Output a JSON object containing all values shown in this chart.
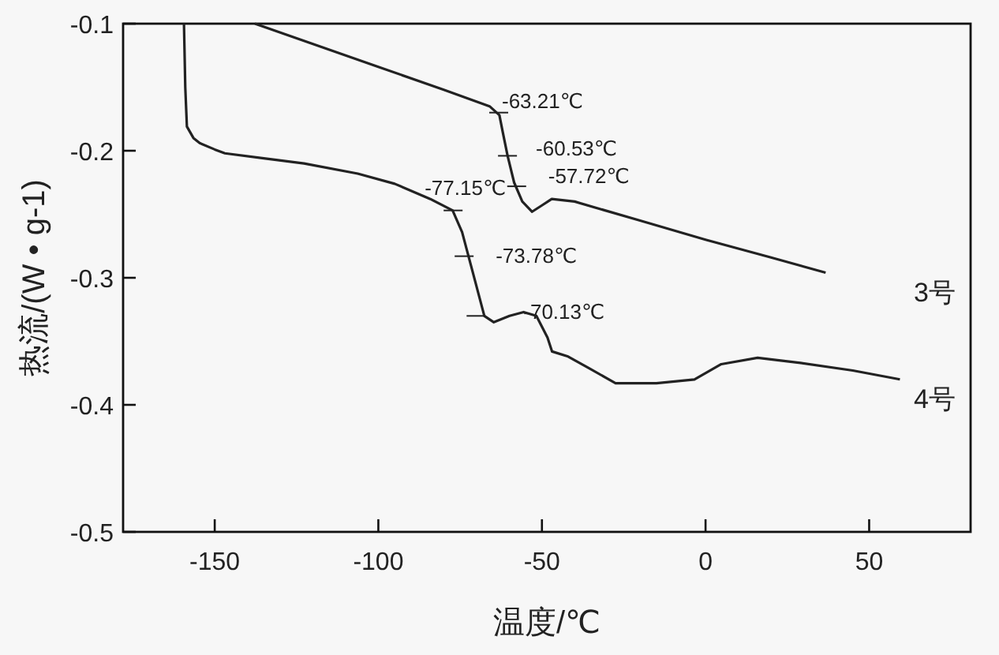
{
  "chart_data": {
    "type": "line",
    "xlabel": "温度/℃",
    "ylabel": "热流/(W • g-1)",
    "xlim": [
      -178,
      81
    ],
    "ylim": [
      -0.5,
      -0.1
    ],
    "xticks": [
      -150,
      -100,
      -50,
      0,
      50
    ],
    "yticks": [
      -0.5,
      -0.4,
      -0.3,
      -0.2,
      -0.1
    ],
    "grid": false,
    "marker": "none",
    "line_style": "solid",
    "series": [
      {
        "name": "3号",
        "color": "#222222",
        "x": [
          -137.7,
          -100,
          -80,
          -66,
          -63,
          -62,
          -60.5,
          -58.5,
          -56,
          -53,
          -50,
          -47,
          -40,
          -20,
          0,
          20,
          36.7
        ],
        "values": [
          -0.1,
          -0.134,
          -0.152,
          -0.165,
          -0.172,
          -0.185,
          -0.204,
          -0.225,
          -0.24,
          -0.248,
          -0.243,
          -0.238,
          -0.24,
          -0.255,
          -0.27,
          -0.284,
          -0.296
        ]
      },
      {
        "name": "4号",
        "color": "#222222",
        "x": [
          -159.4,
          -159,
          -158.5,
          -156.5,
          -154.6,
          -150,
          -146.9,
          -135,
          -122.7,
          -106.3,
          -95,
          -84.1,
          -77.3,
          -74.4,
          -71,
          -67.6,
          -64.7,
          -59.9,
          -55.6,
          -51.7,
          -48.3,
          -46.9,
          -42,
          -35.7,
          -27.5,
          -15,
          -3.4,
          4.8,
          15.9,
          29,
          45,
          59.4
        ],
        "values": [
          -0.1,
          -0.15,
          -0.181,
          -0.19,
          -0.194,
          -0.199,
          -0.202,
          -0.206,
          -0.21,
          -0.218,
          -0.226,
          -0.238,
          -0.247,
          -0.264,
          -0.297,
          -0.33,
          -0.335,
          -0.33,
          -0.327,
          -0.33,
          -0.347,
          -0.358,
          -0.362,
          -0.371,
          -0.383,
          -0.383,
          -0.38,
          -0.368,
          -0.363,
          -0.367,
          -0.373,
          -0.38
        ]
      }
    ],
    "annotations": [
      {
        "text": "-63.21℃",
        "x": -63.21,
        "y": -0.17
      },
      {
        "text": "-60.53℃",
        "x": -60.53,
        "y": -0.204
      },
      {
        "text": "-57.72℃",
        "x": -57.72,
        "y": -0.228
      },
      {
        "text": "-77.15℃",
        "x": -77.15,
        "y": -0.247
      },
      {
        "text": "-73.78℃",
        "x": -73.78,
        "y": -0.283
      },
      {
        "text": "-70.13℃",
        "x": -70.13,
        "y": -0.33
      }
    ]
  }
}
